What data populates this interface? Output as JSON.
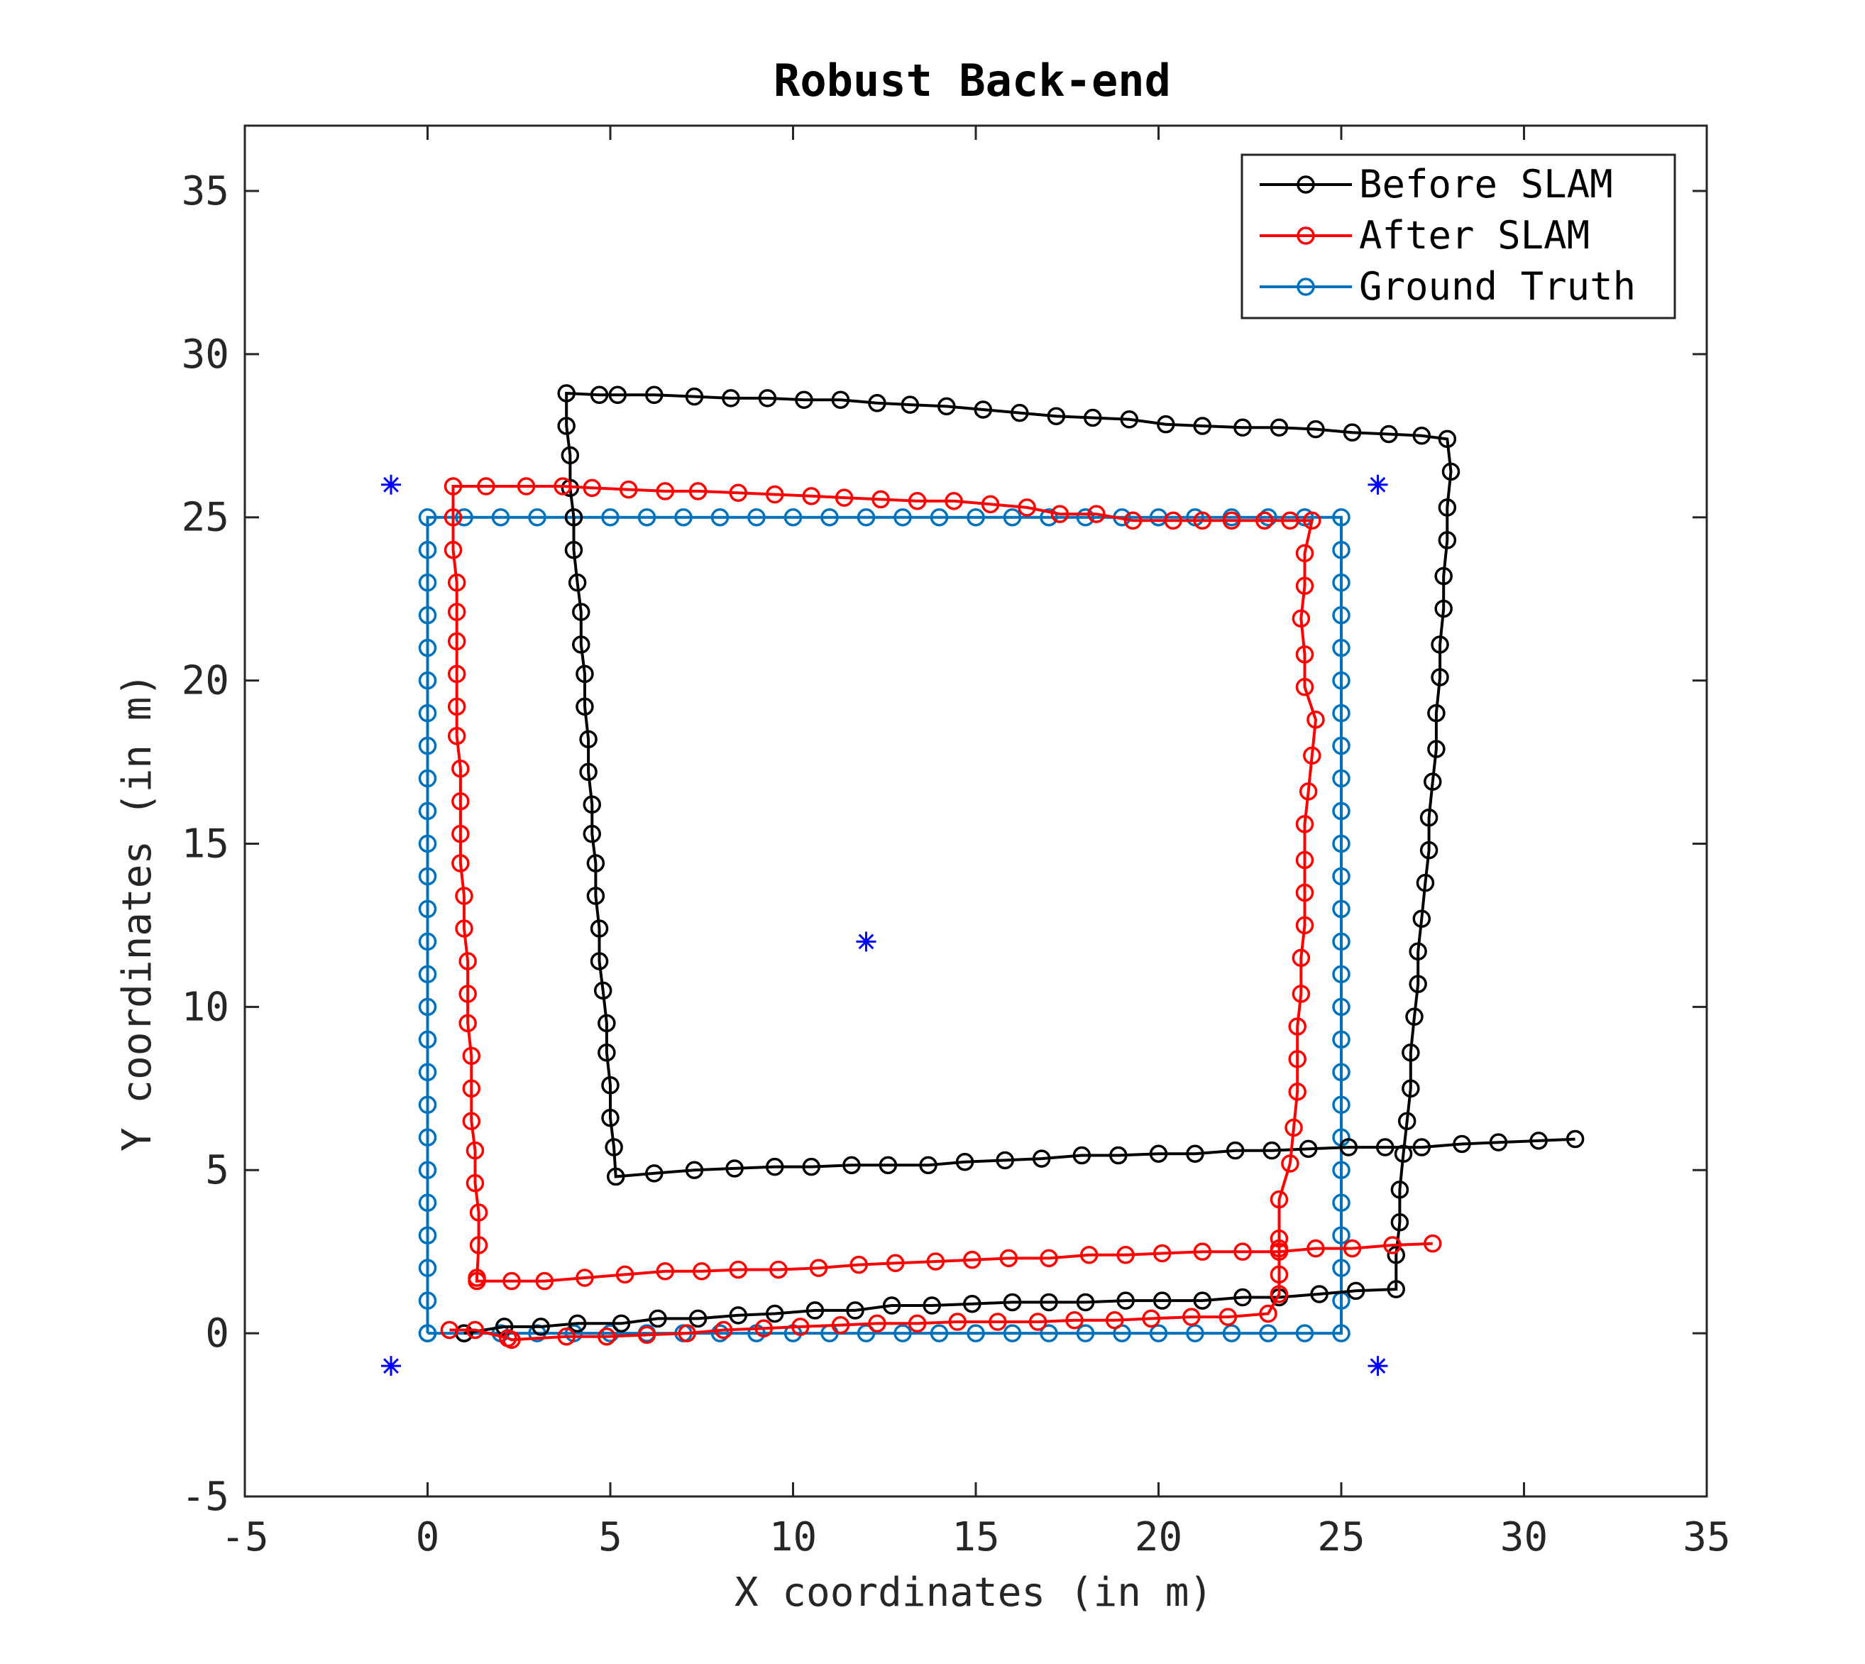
{
  "chart_data": {
    "type": "line",
    "title": "Robust Back-end",
    "xlabel": "X coordinates (in m)",
    "ylabel": "Y coordinates (in m)",
    "xlim": [
      -5,
      35
    ],
    "ylim": [
      -5,
      37
    ],
    "xticks": [
      -5,
      0,
      5,
      10,
      15,
      20,
      25,
      30,
      35
    ],
    "yticks": [
      -5,
      0,
      5,
      10,
      15,
      20,
      25,
      30,
      35
    ],
    "grid": false,
    "legend_position": "top-right",
    "series": [
      {
        "name": "Before SLAM",
        "color": "#000000",
        "marker": "circle",
        "points": [
          [
            1.0,
            0.0
          ],
          [
            2.1,
            0.2
          ],
          [
            3.1,
            0.2
          ],
          [
            4.1,
            0.3
          ],
          [
            5.3,
            0.3
          ],
          [
            6.3,
            0.45
          ],
          [
            7.4,
            0.45
          ],
          [
            8.5,
            0.55
          ],
          [
            9.5,
            0.6
          ],
          [
            10.6,
            0.7
          ],
          [
            11.7,
            0.7
          ],
          [
            12.7,
            0.85
          ],
          [
            13.8,
            0.85
          ],
          [
            14.9,
            0.9
          ],
          [
            16.0,
            0.95
          ],
          [
            17.0,
            0.95
          ],
          [
            18.0,
            0.95
          ],
          [
            19.1,
            1.0
          ],
          [
            20.1,
            1.0
          ],
          [
            21.2,
            1.0
          ],
          [
            22.3,
            1.1
          ],
          [
            23.3,
            1.1
          ],
          [
            24.4,
            1.2
          ],
          [
            25.4,
            1.3
          ],
          [
            26.5,
            1.35
          ],
          [
            26.5,
            2.4
          ],
          [
            26.6,
            3.4
          ],
          [
            26.6,
            4.4
          ],
          [
            26.7,
            5.5
          ],
          [
            26.8,
            6.5
          ],
          [
            26.9,
            7.5
          ],
          [
            26.9,
            8.6
          ],
          [
            27.0,
            9.7
          ],
          [
            27.1,
            10.7
          ],
          [
            27.1,
            11.7
          ],
          [
            27.2,
            12.7
          ],
          [
            27.3,
            13.8
          ],
          [
            27.4,
            14.8
          ],
          [
            27.4,
            15.8
          ],
          [
            27.5,
            16.9
          ],
          [
            27.6,
            17.9
          ],
          [
            27.6,
            19.0
          ],
          [
            27.7,
            20.1
          ],
          [
            27.7,
            21.1
          ],
          [
            27.8,
            22.2
          ],
          [
            27.8,
            23.2
          ],
          [
            27.9,
            24.3
          ],
          [
            27.9,
            25.3
          ],
          [
            28.0,
            26.4
          ],
          [
            27.9,
            27.4
          ],
          [
            27.2,
            27.5
          ],
          [
            26.3,
            27.55
          ],
          [
            25.3,
            27.6
          ],
          [
            24.3,
            27.7
          ],
          [
            23.3,
            27.75
          ],
          [
            22.3,
            27.75
          ],
          [
            21.2,
            27.8
          ],
          [
            20.2,
            27.85
          ],
          [
            19.2,
            28.0
          ],
          [
            18.2,
            28.05
          ],
          [
            17.2,
            28.1
          ],
          [
            16.2,
            28.2
          ],
          [
            15.2,
            28.3
          ],
          [
            14.2,
            28.4
          ],
          [
            13.2,
            28.45
          ],
          [
            12.3,
            28.5
          ],
          [
            11.3,
            28.6
          ],
          [
            10.3,
            28.6
          ],
          [
            9.3,
            28.65
          ],
          [
            8.3,
            28.65
          ],
          [
            7.3,
            28.7
          ],
          [
            6.2,
            28.75
          ],
          [
            5.2,
            28.75
          ],
          [
            4.7,
            28.75
          ],
          [
            3.8,
            28.8
          ],
          [
            3.8,
            27.8
          ],
          [
            3.9,
            26.9
          ],
          [
            3.9,
            25.9
          ],
          [
            4.0,
            25.0
          ],
          [
            4.0,
            24.0
          ],
          [
            4.1,
            23.0
          ],
          [
            4.2,
            22.1
          ],
          [
            4.2,
            21.1
          ],
          [
            4.3,
            20.2
          ],
          [
            4.3,
            19.2
          ],
          [
            4.4,
            18.2
          ],
          [
            4.4,
            17.2
          ],
          [
            4.5,
            16.2
          ],
          [
            4.5,
            15.3
          ],
          [
            4.6,
            14.4
          ],
          [
            4.6,
            13.4
          ],
          [
            4.7,
            12.4
          ],
          [
            4.7,
            11.4
          ],
          [
            4.8,
            10.5
          ],
          [
            4.9,
            9.5
          ],
          [
            4.9,
            8.6
          ],
          [
            5.0,
            7.6
          ],
          [
            5.0,
            6.6
          ],
          [
            5.1,
            5.7
          ],
          [
            5.15,
            4.8
          ],
          [
            6.2,
            4.9
          ],
          [
            7.3,
            5.0
          ],
          [
            8.4,
            5.05
          ],
          [
            9.5,
            5.1
          ],
          [
            10.5,
            5.1
          ],
          [
            11.6,
            5.15
          ],
          [
            12.6,
            5.15
          ],
          [
            13.7,
            5.15
          ],
          [
            14.7,
            5.25
          ],
          [
            15.8,
            5.3
          ],
          [
            16.8,
            5.35
          ],
          [
            17.9,
            5.45
          ],
          [
            18.9,
            5.45
          ],
          [
            20.0,
            5.5
          ],
          [
            21.0,
            5.5
          ],
          [
            22.1,
            5.6
          ],
          [
            23.1,
            5.6
          ],
          [
            24.1,
            5.65
          ],
          [
            25.2,
            5.7
          ],
          [
            26.2,
            5.7
          ],
          [
            27.2,
            5.7
          ],
          [
            28.3,
            5.8
          ],
          [
            29.3,
            5.85
          ],
          [
            30.4,
            5.9
          ],
          [
            31.4,
            5.95
          ]
        ]
      },
      {
        "name": "After SLAM",
        "color": "#ff0000",
        "marker": "circle",
        "points": [
          [
            0.6,
            0.1
          ],
          [
            1.3,
            0.1
          ],
          [
            2.2,
            -0.15
          ],
          [
            2.3,
            -0.2
          ],
          [
            3.8,
            -0.1
          ],
          [
            4.9,
            -0.1
          ],
          [
            6.0,
            -0.05
          ],
          [
            7.1,
            0.0
          ],
          [
            8.1,
            0.1
          ],
          [
            9.2,
            0.15
          ],
          [
            10.2,
            0.2
          ],
          [
            11.3,
            0.25
          ],
          [
            12.3,
            0.3
          ],
          [
            13.4,
            0.3
          ],
          [
            14.5,
            0.35
          ],
          [
            15.6,
            0.35
          ],
          [
            16.7,
            0.35
          ],
          [
            17.7,
            0.4
          ],
          [
            18.8,
            0.4
          ],
          [
            19.8,
            0.45
          ],
          [
            20.9,
            0.5
          ],
          [
            21.9,
            0.5
          ],
          [
            23.0,
            0.6
          ],
          [
            23.3,
            1.2
          ],
          [
            23.3,
            1.8
          ],
          [
            23.3,
            2.6
          ],
          [
            23.3,
            2.9
          ],
          [
            23.3,
            4.1
          ],
          [
            23.6,
            5.2
          ],
          [
            23.7,
            6.3
          ],
          [
            23.8,
            7.4
          ],
          [
            23.8,
            8.4
          ],
          [
            23.8,
            9.4
          ],
          [
            23.9,
            10.4
          ],
          [
            23.9,
            11.5
          ],
          [
            24.0,
            12.5
          ],
          [
            24.0,
            13.5
          ],
          [
            24.0,
            14.5
          ],
          [
            24.0,
            15.6
          ],
          [
            24.1,
            16.6
          ],
          [
            24.2,
            17.7
          ],
          [
            24.3,
            18.8
          ],
          [
            24.0,
            19.8
          ],
          [
            24.0,
            20.8
          ],
          [
            23.9,
            21.9
          ],
          [
            24.0,
            22.9
          ],
          [
            24.0,
            23.9
          ],
          [
            24.2,
            24.9
          ],
          [
            23.6,
            24.9
          ],
          [
            22.9,
            24.9
          ],
          [
            22.0,
            24.9
          ],
          [
            21.2,
            24.9
          ],
          [
            20.4,
            24.9
          ],
          [
            19.3,
            24.9
          ],
          [
            18.3,
            25.1
          ],
          [
            17.3,
            25.1
          ],
          [
            16.4,
            25.3
          ],
          [
            15.4,
            25.4
          ],
          [
            14.4,
            25.5
          ],
          [
            13.4,
            25.5
          ],
          [
            12.4,
            25.55
          ],
          [
            11.4,
            25.6
          ],
          [
            10.5,
            25.65
          ],
          [
            9.5,
            25.7
          ],
          [
            8.5,
            25.75
          ],
          [
            7.4,
            25.8
          ],
          [
            6.5,
            25.8
          ],
          [
            5.5,
            25.85
          ],
          [
            4.5,
            25.9
          ],
          [
            3.7,
            25.95
          ],
          [
            2.7,
            25.95
          ],
          [
            1.6,
            25.95
          ],
          [
            0.7,
            25.95
          ],
          [
            0.7,
            25.0
          ],
          [
            0.7,
            24.0
          ],
          [
            0.8,
            23.0
          ],
          [
            0.8,
            22.1
          ],
          [
            0.8,
            21.2
          ],
          [
            0.8,
            20.2
          ],
          [
            0.8,
            19.2
          ],
          [
            0.8,
            18.3
          ],
          [
            0.9,
            17.3
          ],
          [
            0.9,
            16.3
          ],
          [
            0.9,
            15.3
          ],
          [
            0.9,
            14.4
          ],
          [
            1.0,
            13.4
          ],
          [
            1.0,
            12.4
          ],
          [
            1.1,
            11.4
          ],
          [
            1.1,
            10.4
          ],
          [
            1.1,
            9.5
          ],
          [
            1.2,
            8.5
          ],
          [
            1.2,
            7.5
          ],
          [
            1.2,
            6.5
          ],
          [
            1.3,
            5.6
          ],
          [
            1.3,
            4.6
          ],
          [
            1.4,
            3.7
          ],
          [
            1.4,
            2.7
          ],
          [
            1.35,
            1.7
          ],
          [
            1.35,
            1.6
          ],
          [
            2.3,
            1.6
          ],
          [
            3.2,
            1.6
          ],
          [
            4.3,
            1.7
          ],
          [
            5.4,
            1.8
          ],
          [
            6.5,
            1.9
          ],
          [
            7.5,
            1.9
          ],
          [
            8.5,
            1.95
          ],
          [
            9.6,
            1.95
          ],
          [
            10.7,
            2.0
          ],
          [
            11.8,
            2.1
          ],
          [
            12.8,
            2.15
          ],
          [
            13.9,
            2.2
          ],
          [
            14.9,
            2.25
          ],
          [
            15.9,
            2.3
          ],
          [
            17.0,
            2.3
          ],
          [
            18.1,
            2.4
          ],
          [
            19.1,
            2.4
          ],
          [
            20.1,
            2.45
          ],
          [
            21.2,
            2.5
          ],
          [
            22.3,
            2.5
          ],
          [
            23.3,
            2.5
          ],
          [
            24.3,
            2.6
          ],
          [
            25.3,
            2.6
          ],
          [
            26.4,
            2.7
          ],
          [
            27.5,
            2.75
          ]
        ]
      },
      {
        "name": "Ground Truth",
        "color": "#0072bd",
        "marker": "circle",
        "points": []
      }
    ],
    "landmarks": {
      "color": "#0000ff",
      "marker": "asterisk",
      "points": [
        [
          -1,
          26
        ],
        [
          26,
          26
        ],
        [
          12,
          12
        ],
        [
          -1,
          -1
        ],
        [
          26,
          -1
        ]
      ]
    }
  }
}
